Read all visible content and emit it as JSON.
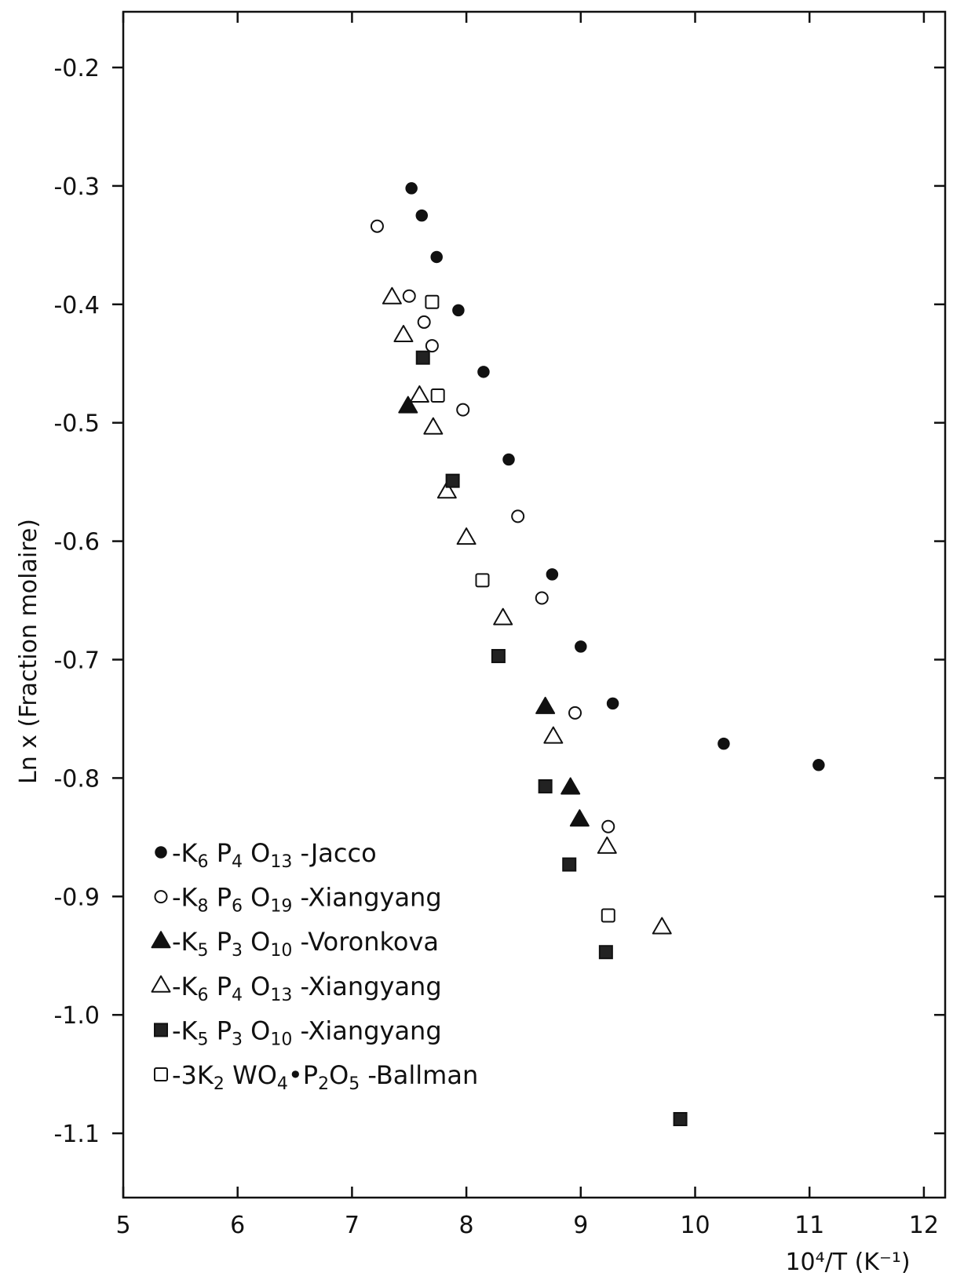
{
  "chart_data": {
    "type": "scatter",
    "title": "",
    "xlabel": "10⁴/T (K⁻¹)",
    "ylabel": "Ln x (Fraction molaire)",
    "xlim": [
      5,
      12
    ],
    "ylim": [
      -1.15,
      -0.15
    ],
    "x_ticks": [
      5,
      6,
      7,
      8,
      9,
      10,
      11,
      12
    ],
    "x_tick_labels": [
      "5",
      "6",
      "7",
      "8",
      "9",
      "10",
      "11",
      "12"
    ],
    "y_ticks": [
      -0.2,
      -0.3,
      -0.4,
      -0.5,
      -0.6,
      -0.7,
      -0.8,
      -0.9,
      -1.0,
      -1.1
    ],
    "y_tick_labels": [
      "-0.2",
      "-0.3",
      "-0.4",
      "-0.5",
      "-0.6",
      "-0.7",
      "-0.8",
      "-0.9",
      "-1.0",
      "-1.1"
    ],
    "grid": false,
    "legend_position": "bottom-left",
    "series": [
      {
        "name": "K6 P4 O13 -Jacco",
        "marker": "filled-circle",
        "x": [
          7.52,
          7.61,
          7.74,
          7.93,
          8.15,
          8.37,
          8.75,
          9.0,
          9.28,
          10.25,
          11.08
        ],
        "y": [
          -0.302,
          -0.325,
          -0.36,
          -0.405,
          -0.457,
          -0.531,
          -0.628,
          -0.689,
          -0.737,
          -0.771,
          -0.789
        ]
      },
      {
        "name": "K8 P6 O19 -Xiangyang",
        "marker": "open-circle",
        "x": [
          7.22,
          7.5,
          7.63,
          7.7,
          7.97,
          8.45,
          8.66,
          8.95,
          9.24
        ],
        "y": [
          -0.334,
          -0.393,
          -0.415,
          -0.435,
          -0.489,
          -0.579,
          -0.648,
          -0.745,
          -0.841
        ]
      },
      {
        "name": "K5 P3 O10 -Voronkova",
        "marker": "filled-triangle",
        "x": [
          7.49,
          8.69,
          8.91,
          8.99
        ],
        "y": [
          -0.486,
          -0.74,
          -0.808,
          -0.835
        ]
      },
      {
        "name": "K6 P4 O13 -Xiangyang",
        "marker": "open-triangle",
        "x": [
          7.35,
          7.45,
          7.59,
          7.71,
          7.83,
          8.0,
          8.32,
          8.76,
          9.23,
          9.71
        ],
        "y": [
          -0.394,
          -0.426,
          -0.477,
          -0.504,
          -0.558,
          -0.597,
          -0.665,
          -0.765,
          -0.858,
          -0.926
        ]
      },
      {
        "name": "K5 P3 O10 -Xiangyang",
        "marker": "filled-square",
        "x": [
          7.62,
          7.88,
          8.28,
          8.69,
          8.9,
          9.22,
          9.87
        ],
        "y": [
          -0.445,
          -0.549,
          -0.697,
          -0.807,
          -0.873,
          -0.947,
          -1.088
        ]
      },
      {
        "name": "3K2 WO4•P2O5 -Ballman",
        "marker": "open-square",
        "x": [
          7.7,
          7.75,
          8.14,
          9.24
        ],
        "y": [
          -0.398,
          -0.477,
          -0.633,
          -0.916
        ]
      }
    ],
    "legend": [
      {
        "marker": "filled-circle",
        "parts": [
          "-K",
          "6",
          " P",
          "4",
          " O",
          "13",
          " -Jacco"
        ]
      },
      {
        "marker": "open-circle",
        "parts": [
          "-K",
          "8",
          " P",
          "6",
          " O",
          "19",
          " -Xiangyang"
        ]
      },
      {
        "marker": "filled-triangle",
        "parts": [
          "-K",
          "5",
          " P",
          "3",
          " O",
          "10",
          " -Voronkova"
        ]
      },
      {
        "marker": "open-triangle",
        "parts": [
          "-K",
          "6",
          " P",
          "4",
          " O",
          "13",
          " -Xiangyang"
        ]
      },
      {
        "marker": "filled-square",
        "parts": [
          "-K",
          "5",
          " P",
          "3",
          " O",
          "10",
          " -Xiangyang"
        ]
      },
      {
        "marker": "open-square",
        "parts": [
          "-3K",
          "2",
          " WO",
          "4",
          "•P",
          "2",
          "O",
          "5",
          " -Ballman"
        ]
      }
    ]
  }
}
